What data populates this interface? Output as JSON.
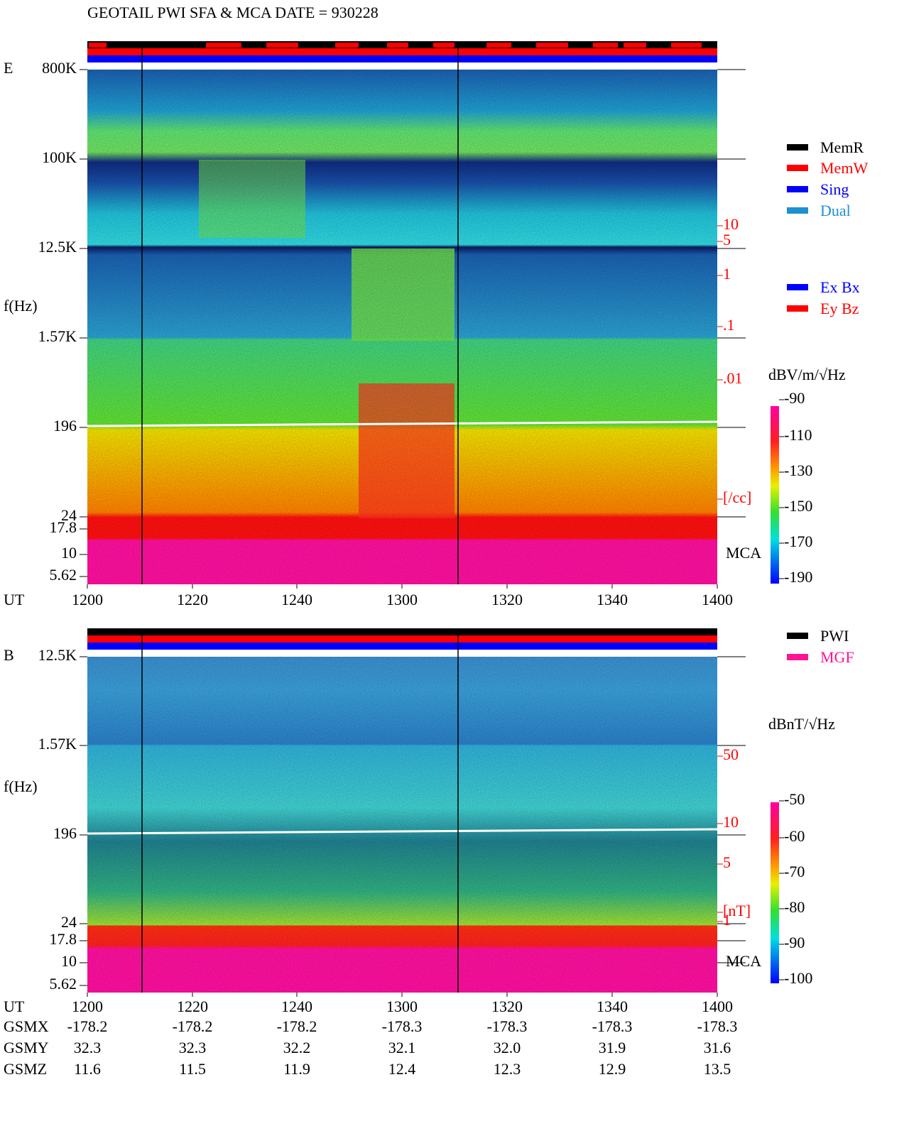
{
  "title": "GEOTAIL  PWI SFA & MCA   DATE = 930228",
  "panels": [
    {
      "label": "E",
      "y_axis_label": "f(Hz)",
      "x_axis_label": "UT",
      "y_ticks": [
        "800K",
        "100K",
        "12.5K",
        "1.57K",
        "196",
        "24",
        "17.8",
        "10",
        "5.62"
      ],
      "right_ticks": [
        "10",
        "5",
        "1",
        ".1",
        ".01",
        "[/cc]"
      ],
      "mca_label": "MCA",
      "x_ticks": [
        "1200",
        "1220",
        "1240",
        "1300",
        "1320",
        "1340",
        "1400"
      ],
      "unit": "dBV/m/√Hz",
      "colorbar_ticks": [
        "-90",
        "-110",
        "-130",
        "-150",
        "-170",
        "-190"
      ],
      "legend": [
        {
          "name": "MemR",
          "color": "#000000"
        },
        {
          "name": "MemW",
          "color": "#ff0000"
        },
        {
          "name": "Sing",
          "color": "#0000ff"
        },
        {
          "name": "Dual",
          "color": "#1e90d0"
        },
        {
          "name": "Ex Bx",
          "color": "#0000ff"
        },
        {
          "name": "Ey Bz",
          "color": "#ff0000"
        }
      ]
    },
    {
      "label": "B",
      "y_axis_label": "f(Hz)",
      "x_axis_label": "UT",
      "y_ticks": [
        "12.5K",
        "1.57K",
        "196",
        "24",
        "17.8",
        "10",
        "5.62"
      ],
      "right_ticks": [
        "50",
        "10",
        "5",
        "1",
        "[nT]"
      ],
      "mca_label": "MCA",
      "x_ticks": [
        "1200",
        "1220",
        "1240",
        "1300",
        "1320",
        "1340",
        "1400"
      ],
      "unit": "dBnT/√Hz",
      "colorbar_ticks": [
        "-50",
        "-60",
        "-70",
        "-80",
        "-90",
        "-100"
      ],
      "legend": [
        {
          "name": "PWI",
          "color": "#000000"
        },
        {
          "name": "MGF",
          "color": "#ff1493"
        }
      ]
    }
  ],
  "orbit": [
    {
      "label": "GSMX",
      "values": [
        "-178.2",
        "-178.2",
        "-178.2",
        "-178.3",
        "-178.3",
        "-178.3",
        "-178.3"
      ]
    },
    {
      "label": "GSMY",
      "values": [
        "32.3",
        "32.3",
        "32.2",
        "32.1",
        "32.0",
        "31.9",
        "31.6"
      ]
    },
    {
      "label": "GSMZ",
      "values": [
        "11.6",
        "11.5",
        "11.9",
        "12.4",
        "12.3",
        "12.9",
        "13.5"
      ]
    }
  ]
}
